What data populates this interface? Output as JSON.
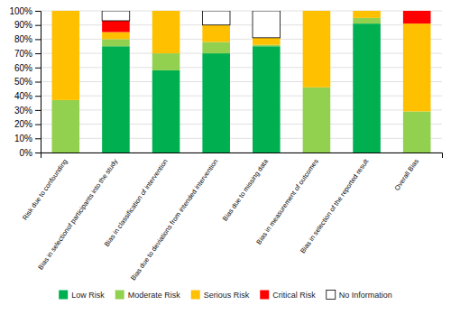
{
  "chart_data": {
    "type": "bar",
    "stacked": true,
    "categories": [
      "Risk due to confounding",
      "Bias in selectionof participants into the study",
      "Bias in classification of intervention",
      "Bias due to deviations from intended intervention",
      "Bias due to missing data",
      "Bias in measurement of outcomes",
      "Bias in selection of the reported result",
      "Overall Bias"
    ],
    "series": [
      {
        "name": "Low Risk",
        "color": "#00b050",
        "values": [
          0,
          75,
          58,
          70,
          75,
          0,
          91,
          0
        ]
      },
      {
        "name": "Moderate Risk",
        "color": "#92d050",
        "values": [
          37,
          5,
          12,
          8,
          1,
          46,
          4,
          29
        ]
      },
      {
        "name": "Serious Risk",
        "color": "#ffc000",
        "values": [
          63,
          5,
          30,
          12,
          5,
          54,
          5,
          62
        ]
      },
      {
        "name": "Critical Risk",
        "color": "#ff0000",
        "values": [
          0,
          8,
          0,
          0,
          0,
          0,
          0,
          9
        ]
      },
      {
        "name": "No Information",
        "color": "#ffffff",
        "values": [
          0,
          7,
          0,
          10,
          19,
          0,
          0,
          0
        ]
      }
    ],
    "ylim": [
      0,
      100
    ],
    "yticks": [
      {
        "value": 0,
        "label": "0%"
      },
      {
        "value": 10,
        "label": "10%"
      },
      {
        "value": 20,
        "label": "20%"
      },
      {
        "value": 30,
        "label": "30%"
      },
      {
        "value": 40,
        "label": "40%"
      },
      {
        "value": 50,
        "label": "50%"
      },
      {
        "value": 60,
        "label": "60%"
      },
      {
        "value": 70,
        "label": "70%"
      },
      {
        "value": 80,
        "label": "80%"
      },
      {
        "value": 90,
        "label": "90%"
      },
      {
        "value": 100,
        "label": "100%"
      }
    ],
    "grid": true,
    "legend": "bottom"
  }
}
